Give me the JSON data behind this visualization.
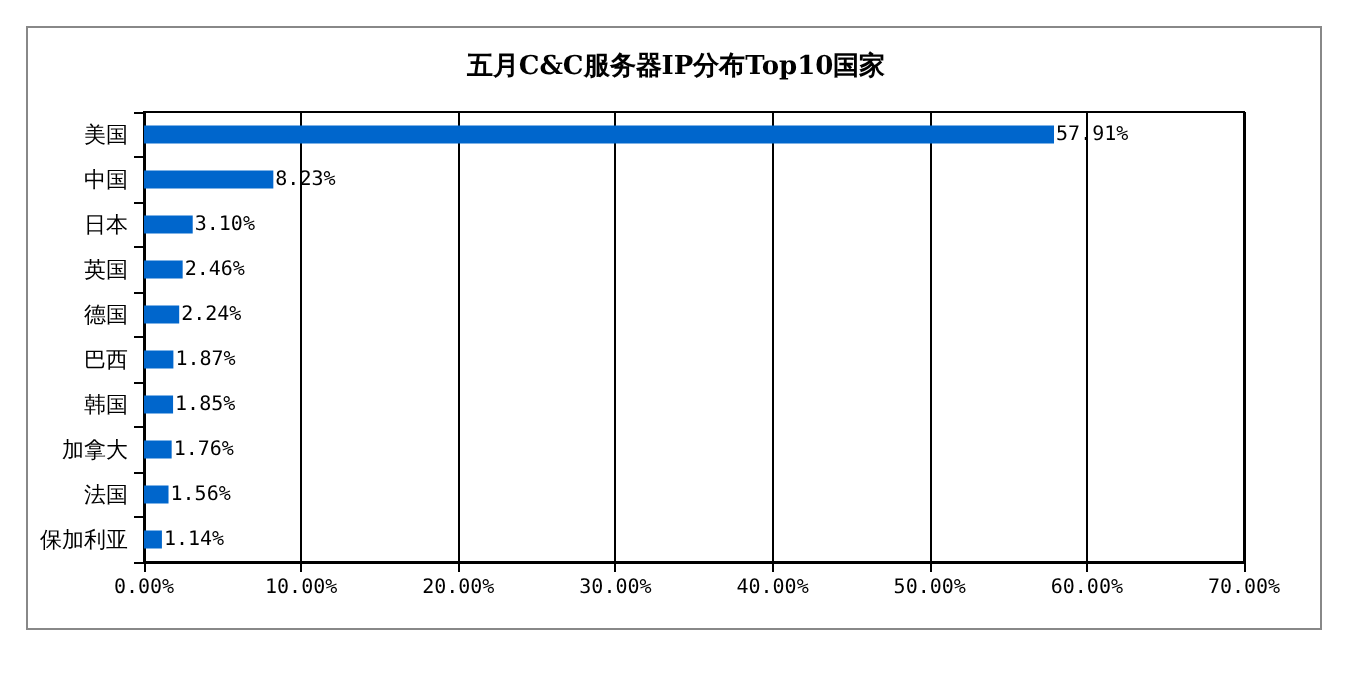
{
  "chart_data": {
    "type": "bar",
    "orientation": "horizontal",
    "title": "五月C&C服务器IP分布Top10国家",
    "categories": [
      "美国",
      "中国",
      "日本",
      "英国",
      "德国",
      "巴西",
      "韩国",
      "加拿大",
      "法国",
      "保加利亚"
    ],
    "values": [
      57.91,
      8.23,
      3.1,
      2.46,
      2.24,
      1.87,
      1.85,
      1.76,
      1.56,
      1.14
    ],
    "value_labels": [
      "57.91%",
      "8.23%",
      "3.10%",
      "2.46%",
      "2.24%",
      "1.87%",
      "1.85%",
      "1.76%",
      "1.56%",
      "1.14%"
    ],
    "color": "#0066cc",
    "xlim": [
      0,
      70
    ],
    "xticks": [
      {
        "value": 0,
        "label": "0.00%"
      },
      {
        "value": 10,
        "label": "10.00%"
      },
      {
        "value": 20,
        "label": "20.00%"
      },
      {
        "value": 30,
        "label": "30.00%"
      },
      {
        "value": 40,
        "label": "40.00%"
      },
      {
        "value": 50,
        "label": "50.00%"
      },
      {
        "value": 60,
        "label": "60.00%"
      },
      {
        "value": 70,
        "label": "70.00%"
      }
    ],
    "grid": "x"
  }
}
